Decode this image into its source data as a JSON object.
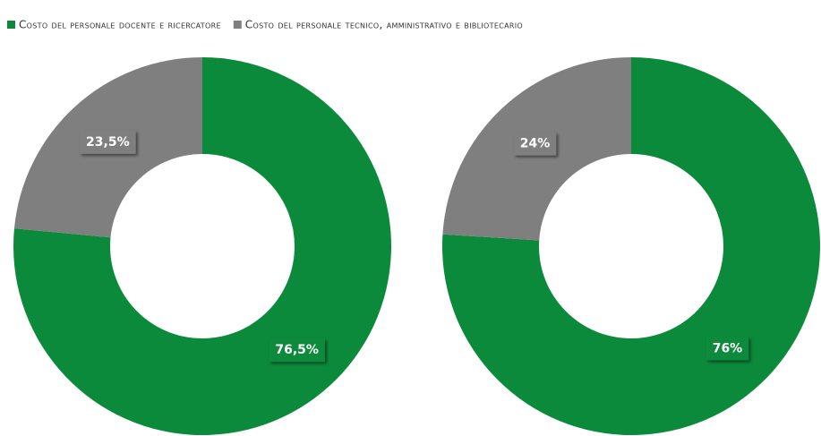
{
  "chart_data": [
    {
      "type": "pie",
      "donut": true,
      "categories": [
        "Costo del personale docente e ricercatore",
        "Costo del personale tecnico, amministrativo e bibliotecario"
      ],
      "values": [
        76.5,
        23.5
      ],
      "value_labels": [
        "76,5%",
        "23,5%"
      ],
      "colors": [
        "#0b8a3b",
        "#7f7f7f"
      ]
    },
    {
      "type": "pie",
      "donut": true,
      "categories": [
        "Costo del personale docente e ricercatore",
        "Costo del personale tecnico, amministrativo e bibliotecario"
      ],
      "values": [
        76,
        24
      ],
      "value_labels": [
        "76%",
        "24%"
      ],
      "colors": [
        "#0b8a3b",
        "#7f7f7f"
      ]
    }
  ]
}
